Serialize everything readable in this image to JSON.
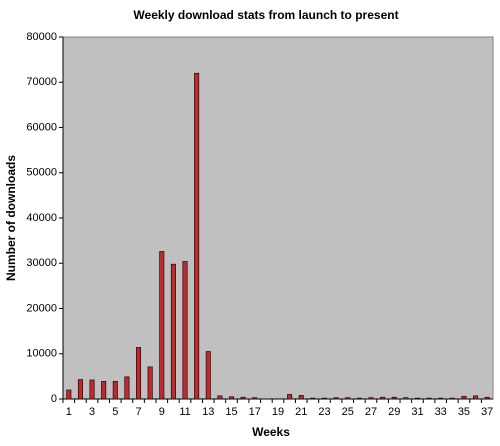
{
  "chart_data": {
    "type": "bar",
    "title": "Weekly download stats from launch to present",
    "x_label": "Weeks",
    "y_label": "Number of downloads",
    "categories": [
      "1",
      null,
      "3",
      null,
      "5",
      null,
      "7",
      null,
      "9",
      null,
      "11",
      null,
      "13",
      null,
      "15",
      null,
      "17",
      null,
      "19",
      null,
      "21",
      null,
      "23",
      null,
      "25",
      null,
      "27",
      null,
      "29",
      null,
      "31",
      null,
      "33",
      null,
      "35",
      null,
      "37"
    ],
    "values": [
      2000,
      4300,
      4200,
      3900,
      3900,
      4900,
      11400,
      7100,
      32600,
      29800,
      30400,
      72000,
      10500,
      700,
      500,
      400,
      300,
      0,
      0,
      1000,
      800,
      200,
      200,
      300,
      300,
      200,
      300,
      400,
      400,
      300,
      200,
      200,
      200,
      200,
      600,
      700,
      400
    ],
    "color": "#c0282d",
    "background": "#c0c0c0",
    "ylim": [
      0,
      80000
    ],
    "yticks": [
      0,
      10000,
      20000,
      30000,
      40000,
      50000,
      60000,
      70000,
      80000
    ],
    "grid": false
  }
}
